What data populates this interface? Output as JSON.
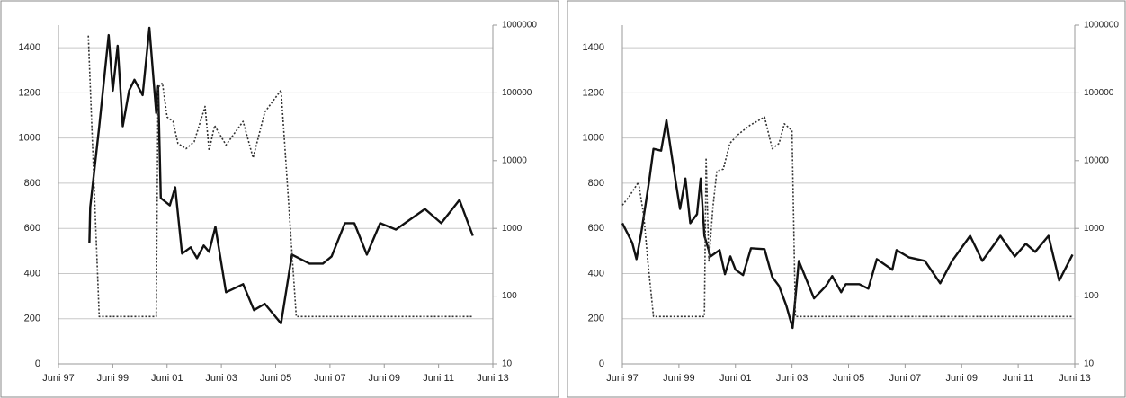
{
  "chart_data": [
    {
      "type": "line",
      "xlim": [
        1997.5,
        2013.5
      ],
      "xticks": [
        {
          "value": 1997.5,
          "label": "Juni 97"
        },
        {
          "value": 1999.5,
          "label": "Juni 99"
        },
        {
          "value": 2001.5,
          "label": "Juni 01"
        },
        {
          "value": 2003.5,
          "label": "Juni 03"
        },
        {
          "value": 2005.5,
          "label": "Juni 05"
        },
        {
          "value": 2007.5,
          "label": "Juni 07"
        },
        {
          "value": 2009.5,
          "label": "Juni 09"
        },
        {
          "value": 2011.5,
          "label": "Juni 11"
        },
        {
          "value": 2013.5,
          "label": "Juni 13"
        }
      ],
      "ylim": [
        0,
        1500
      ],
      "yticks": [
        0,
        200,
        400,
        600,
        800,
        1000,
        1200,
        1400
      ],
      "y2lim": [
        10,
        1000000
      ],
      "y2ticks": [
        10,
        100,
        1000,
        10000,
        100000,
        1000000
      ],
      "y2log": true,
      "grid": true,
      "series": [
        {
          "color": "#111111",
          "style": "solid",
          "x": [
            1998.64,
            1998.67,
            1999.0,
            1999.35,
            1999.5,
            1999.68,
            1999.87,
            2000.1,
            2000.3,
            2000.6,
            2000.85,
            2001.1,
            2001.17,
            2001.27,
            2001.6,
            2001.8,
            2002.05,
            2002.37,
            2002.6,
            2002.85,
            2003.05,
            2003.28,
            2003.67,
            2004.3,
            2004.7,
            2005.1,
            2005.7,
            2006.1,
            2006.75,
            2007.24,
            2007.56,
            2008.05,
            2008.4,
            2008.86,
            2009.35,
            2009.93,
            2011.0,
            2011.6,
            2012.27,
            2012.76
          ],
          "values": [
            536,
            694,
            1050,
            1456,
            1210,
            1409,
            1052,
            1210,
            1258,
            1190,
            1488,
            1111,
            1230,
            734,
            702,
            782,
            488,
            516,
            468,
            524,
            496,
            607,
            317,
            353,
            238,
            266,
            179,
            484,
            444,
            444,
            476,
            623,
            623,
            484,
            623,
            595,
            686,
            623,
            726,
            567
          ]
        },
        {
          "color": "#333333",
          "style": "dotted",
          "axis": "y2",
          "x": [
            1998.6,
            1999.0,
            2001.1,
            2001.17,
            2001.33,
            2001.5,
            2001.72,
            2001.9,
            2002.2,
            2002.5,
            2002.9,
            2003.05,
            2003.25,
            2003.67,
            2004.3,
            2004.67,
            2005.1,
            2005.7,
            2006.26,
            2012.76
          ],
          "values": [
            700000,
            50,
            50,
            120000,
            140000,
            44000,
            38000,
            18000,
            15000,
            19000,
            63000,
            14000,
            33000,
            17000,
            38000,
            11000,
            52000,
            110000,
            50,
            50
          ]
        }
      ]
    },
    {
      "type": "line",
      "xlim": [
        1997.5,
        2013.5
      ],
      "xticks": [
        {
          "value": 1997.5,
          "label": "Juni 97"
        },
        {
          "value": 1999.5,
          "label": "Juni 99"
        },
        {
          "value": 2001.5,
          "label": "Juni 01"
        },
        {
          "value": 2003.5,
          "label": "Juni 03"
        },
        {
          "value": 2005.5,
          "label": "Juni 05"
        },
        {
          "value": 2007.5,
          "label": "Juni 07"
        },
        {
          "value": 2009.5,
          "label": "Juni 09"
        },
        {
          "value": 2011.5,
          "label": "Juni 11"
        },
        {
          "value": 2013.5,
          "label": "Juni 13"
        }
      ],
      "ylim": [
        0,
        1500
      ],
      "yticks": [
        0,
        200,
        400,
        600,
        800,
        1000,
        1200,
        1400
      ],
      "y2lim": [
        10,
        1000000
      ],
      "y2ticks": [
        10,
        100,
        1000,
        10000,
        100000,
        1000000
      ],
      "y2log": true,
      "grid": true,
      "series": [
        {
          "color": "#111111",
          "style": "solid",
          "x": [
            1997.5,
            1997.85,
            1998.0,
            1998.17,
            1998.45,
            1998.6,
            1998.87,
            1999.06,
            1999.35,
            1999.54,
            1999.73,
            1999.9,
            2000.14,
            2000.27,
            2000.4,
            2000.62,
            2000.94,
            2001.13,
            2001.32,
            2001.5,
            2001.77,
            2002.05,
            2002.53,
            2002.8,
            2003.04,
            2003.3,
            2003.52,
            2003.74,
            2004.28,
            2004.7,
            2004.92,
            2005.24,
            2005.4,
            2005.88,
            2006.2,
            2006.5,
            2007.05,
            2007.2,
            2007.63,
            2008.2,
            2008.74,
            2009.16,
            2009.8,
            2010.23,
            2010.87,
            2011.38,
            2011.77,
            2012.1,
            2012.57,
            2012.95,
            2013.42
          ],
          "values": [
            623,
            536,
            464,
            583,
            813,
            952,
            944,
            1079,
            833,
            686,
            821,
            623,
            663,
            821,
            567,
            476,
            504,
            397,
            476,
            417,
            393,
            512,
            508,
            385,
            345,
            258,
            159,
            456,
            290,
            345,
            389,
            317,
            353,
            353,
            333,
            464,
            417,
            504,
            472,
            456,
            357,
            456,
            567,
            456,
            567,
            476,
            532,
            496,
            567,
            369,
            484
          ]
        },
        {
          "color": "#333333",
          "style": "dotted",
          "axis": "y2",
          "x": [
            1997.5,
            1997.75,
            1998.07,
            1998.26,
            1998.4,
            1998.6,
            2000.4,
            2000.46,
            2000.56,
            2000.7,
            2000.84,
            2001.07,
            2001.3,
            2001.58,
            2002.0,
            2002.53,
            2002.8,
            2003.04,
            2003.23,
            2003.5,
            2003.62,
            2013.42
          ],
          "values": [
            2200,
            3000,
            4800,
            1500,
            330,
            50,
            50,
            11000,
            330,
            2000,
            7000,
            7500,
            18000,
            24000,
            33000,
            44000,
            15000,
            18000,
            35000,
            28000,
            50,
            50
          ]
        }
      ]
    }
  ]
}
